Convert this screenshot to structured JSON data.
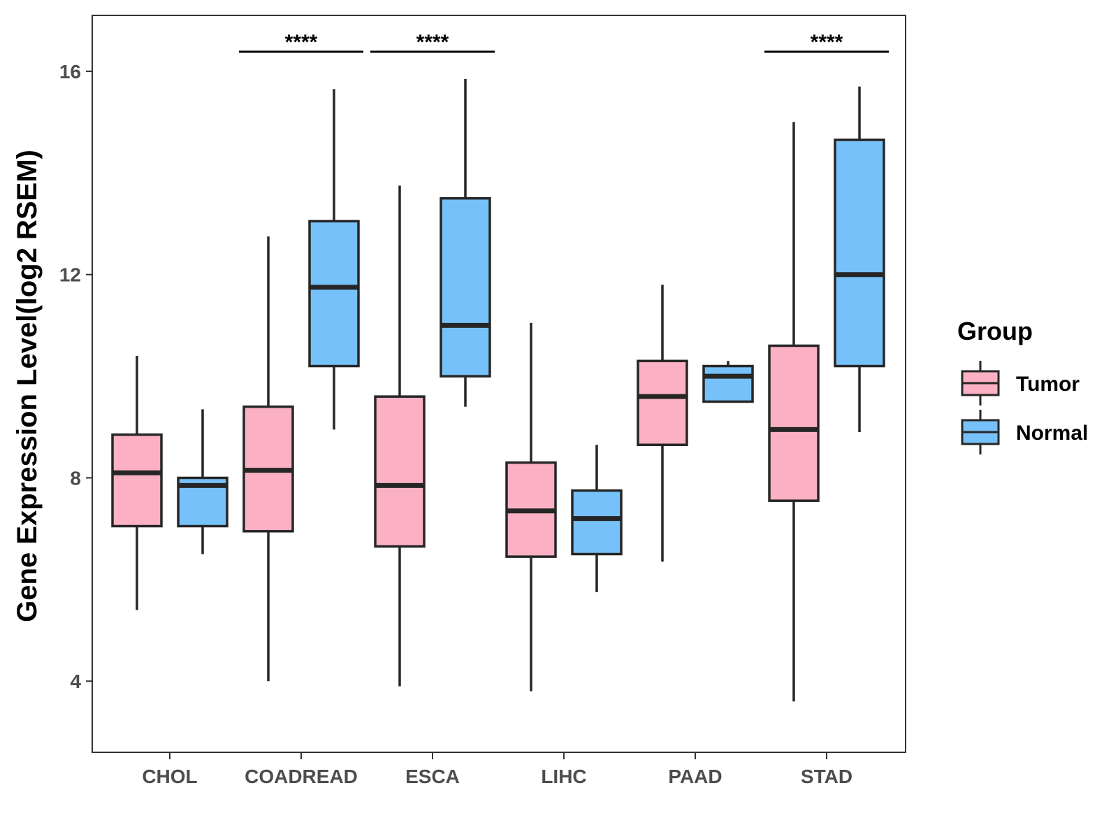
{
  "chart_data": {
    "type": "boxplot",
    "ylabel": "Gene Expression Level(log2 RSEM)",
    "xlabel": "",
    "ylim": [
      2.6,
      17.1
    ],
    "yticks": [
      4,
      8,
      12,
      16
    ],
    "categories": [
      "CHOL",
      "COADREAD",
      "ESCA",
      "LIHC",
      "PAAD",
      "STAD"
    ],
    "legend": {
      "title": "Group",
      "position": "right",
      "entries": [
        {
          "name": "Tumor",
          "color": "#FBB1C3"
        },
        {
          "name": "Normal",
          "color": "#76C1F9"
        }
      ]
    },
    "series": [
      {
        "name": "Tumor",
        "color": "#FBB1C3",
        "boxes": [
          {
            "category": "CHOL",
            "whisker_low": 5.4,
            "q1": 7.05,
            "median": 8.1,
            "q3": 8.85,
            "whisker_high": 10.4
          },
          {
            "category": "COADREAD",
            "whisker_low": 4.0,
            "q1": 6.95,
            "median": 8.15,
            "q3": 9.4,
            "whisker_high": 12.75
          },
          {
            "category": "ESCA",
            "whisker_low": 3.9,
            "q1": 6.65,
            "median": 7.85,
            "q3": 9.6,
            "whisker_high": 13.75
          },
          {
            "category": "LIHC",
            "whisker_low": 3.8,
            "q1": 6.45,
            "median": 7.35,
            "q3": 8.3,
            "whisker_high": 11.05
          },
          {
            "category": "PAAD",
            "whisker_low": 6.35,
            "q1": 8.65,
            "median": 9.6,
            "q3": 10.3,
            "whisker_high": 11.8
          },
          {
            "category": "STAD",
            "whisker_low": 3.6,
            "q1": 7.55,
            "median": 8.95,
            "q3": 10.6,
            "whisker_high": 15.0
          }
        ]
      },
      {
        "name": "Normal",
        "color": "#76C1F9",
        "boxes": [
          {
            "category": "CHOL",
            "whisker_low": 6.5,
            "q1": 7.05,
            "median": 7.85,
            "q3": 8.0,
            "whisker_high": 9.35
          },
          {
            "category": "COADREAD",
            "whisker_low": 8.95,
            "q1": 10.2,
            "median": 11.75,
            "q3": 13.05,
            "whisker_high": 15.65
          },
          {
            "category": "ESCA",
            "whisker_low": 9.4,
            "q1": 10.0,
            "median": 11.0,
            "q3": 13.5,
            "whisker_high": 15.85
          },
          {
            "category": "LIHC",
            "whisker_low": 5.75,
            "q1": 6.5,
            "median": 7.2,
            "q3": 7.75,
            "whisker_high": 8.65
          },
          {
            "category": "PAAD",
            "whisker_low": 9.5,
            "q1": 9.5,
            "median": 10.0,
            "q3": 10.2,
            "whisker_high": 10.3
          },
          {
            "category": "STAD",
            "whisker_low": 8.9,
            "q1": 10.2,
            "median": 12.0,
            "q3": 14.65,
            "whisker_high": 15.7
          }
        ]
      }
    ],
    "significance": [
      {
        "category": "COADREAD",
        "label": "****"
      },
      {
        "category": "ESCA",
        "label": "****"
      },
      {
        "category": "STAD",
        "label": "****"
      }
    ]
  }
}
